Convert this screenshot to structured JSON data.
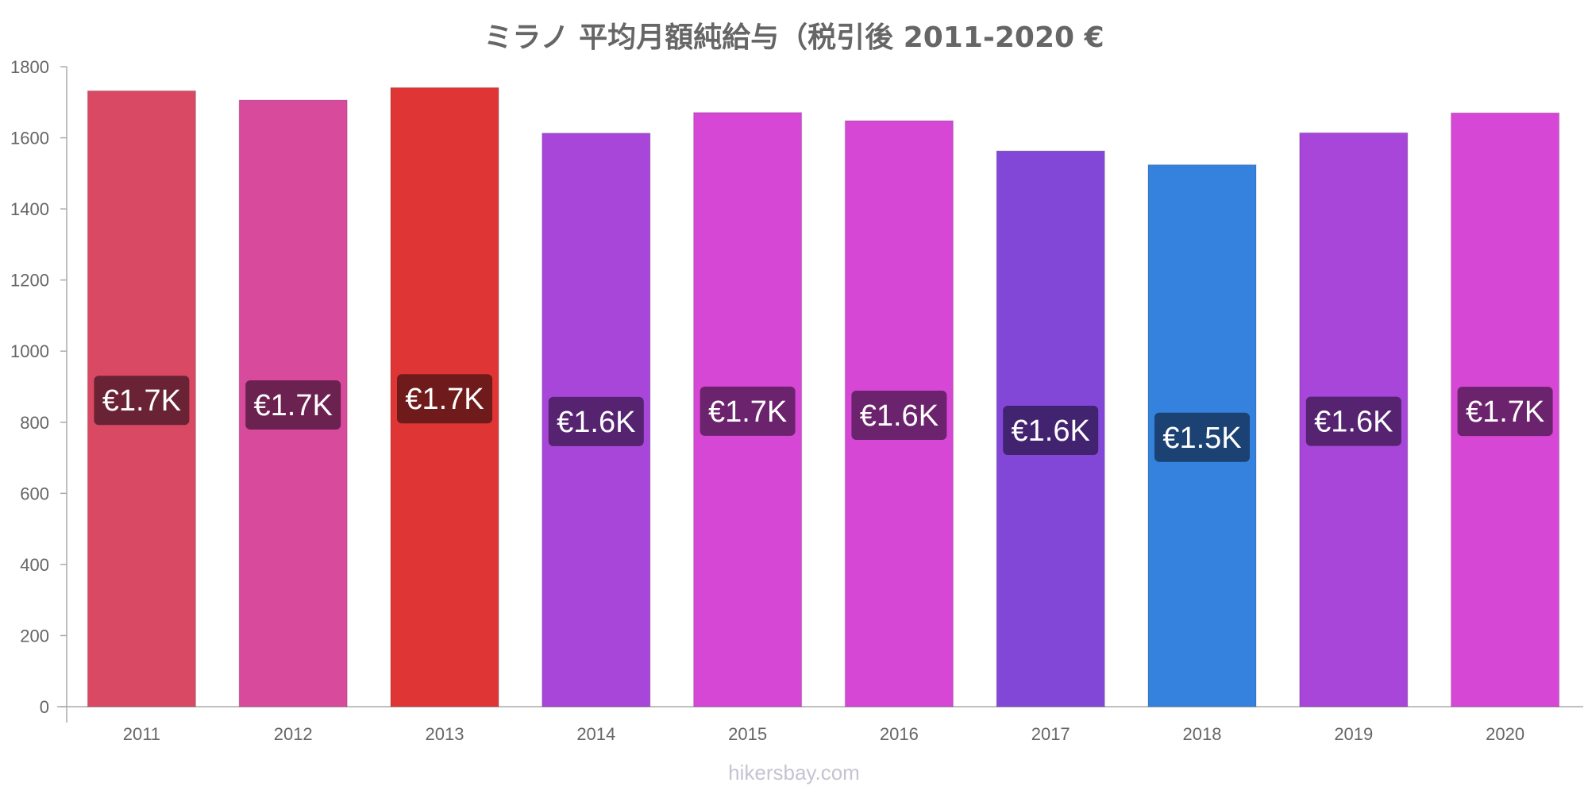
{
  "chart_data": {
    "type": "bar",
    "title": "ミラノ 平均月額純給与（税引後 2011-2020 €",
    "xlabel": "",
    "ylabel": "",
    "ylim": [
      0,
      1800
    ],
    "yticks": [
      0,
      200,
      400,
      600,
      800,
      1000,
      1200,
      1400,
      1600,
      1800
    ],
    "grid": false,
    "legend": "none",
    "categories": [
      "2011",
      "2012",
      "2013",
      "2014",
      "2015",
      "2016",
      "2017",
      "2018",
      "2019",
      "2020"
    ],
    "values": [
      1732,
      1706,
      1741,
      1613,
      1671,
      1648,
      1563,
      1524,
      1614,
      1670
    ],
    "data_labels": [
      "€1.7K",
      "€1.7K",
      "€1.7K",
      "€1.6K",
      "€1.7K",
      "€1.6K",
      "€1.6K",
      "€1.5K",
      "€1.6K",
      "€1.7K"
    ],
    "colors": [
      "#d94964",
      "#d84a9c",
      "#e03535",
      "#a746d8",
      "#d547d4",
      "#d547d4",
      "#8347d8",
      "#3582de",
      "#a746d8",
      "#d547d4"
    ],
    "label_bg_colors": [
      "#6a2334",
      "#6c2250",
      "#701b1b",
      "#552370",
      "#6c236d",
      "#6c236d",
      "#42236f",
      "#1b4272",
      "#552370",
      "#6c236d"
    ]
  },
  "watermark": "hikersbay.com"
}
